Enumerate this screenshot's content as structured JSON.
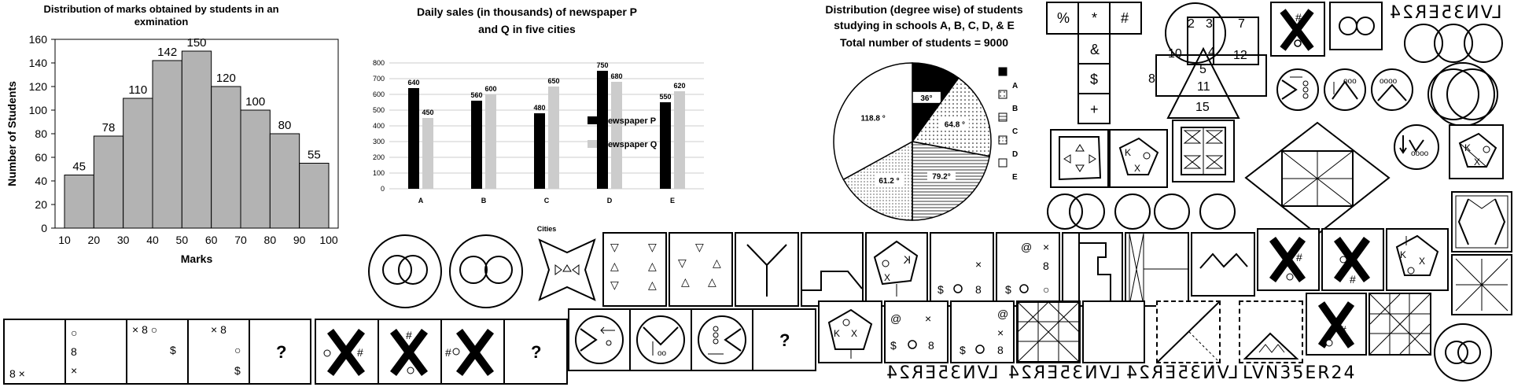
{
  "chart_data": [
    {
      "type": "bar",
      "title": "Distribution of marks obtained by students in an exmination",
      "xlabel": "Marks",
      "ylabel": "Number of Students",
      "x_ticks": [
        "10",
        "20",
        "30",
        "40",
        "50",
        "60",
        "70",
        "80",
        "90",
        "100"
      ],
      "bins": [
        [
          10,
          20
        ],
        [
          20,
          30
        ],
        [
          30,
          40
        ],
        [
          40,
          50
        ],
        [
          50,
          60
        ],
        [
          60,
          70
        ],
        [
          70,
          80
        ],
        [
          80,
          90
        ],
        [
          90,
          100
        ]
      ],
      "values": [
        45,
        78,
        110,
        142,
        150,
        120,
        100,
        80,
        55
      ],
      "ylim": [
        0,
        160
      ],
      "y_ticks": [
        0,
        20,
        40,
        60,
        80,
        100,
        120,
        140,
        160
      ],
      "color": "#b3b3b3"
    },
    {
      "type": "bar",
      "title": "Daily sales (in thousands) of newspaper P and Q in five cities",
      "xlabel": "Cities",
      "categories": [
        "A",
        "B",
        "C",
        "D",
        "E"
      ],
      "series": [
        {
          "name": "Newspaper P",
          "values": [
            640,
            560,
            480,
            750,
            550
          ],
          "color": "#000000"
        },
        {
          "name": "Newspaper Q",
          "values": [
            450,
            600,
            650,
            680,
            620
          ],
          "color": "#cccccc"
        }
      ],
      "ylim": [
        0,
        800
      ],
      "y_ticks": [
        0,
        100,
        200,
        300,
        400,
        500,
        600,
        700,
        800
      ],
      "legend": "right",
      "grid": true
    },
    {
      "type": "pie",
      "title": "Distribution (degree wise) of students studying in schools A, B, C, D, & E",
      "subtitle": "Total number of students = 9000",
      "labels": [
        "A",
        "B",
        "C",
        "D",
        "E"
      ],
      "values": [
        36,
        64.8,
        79.2,
        61.2,
        118.8
      ],
      "value_labels": [
        "36°",
        "64.8 °",
        "79.2°",
        "61.2 °",
        "118.8 °"
      ],
      "legend": "right"
    }
  ],
  "puzzles": {
    "grid_symbols": [
      "%",
      "*",
      "#",
      "&",
      "$",
      "+"
    ],
    "venn_numbers": [
      "2",
      "3",
      "7",
      "10",
      "4",
      "12",
      "8",
      "5",
      "11",
      "15"
    ],
    "mirror_top": "LVN35ER24",
    "question_mark": "?",
    "dots_mirrored_a": "8 ×",
    "dots_b": [
      "○",
      "8",
      "×"
    ],
    "dots_c": [
      "× 8 ○",
      "$"
    ],
    "dots_d": [
      "× 8",
      "○",
      "$"
    ],
    "hash": "#",
    "kx_letters": [
      "K",
      "X",
      "○"
    ],
    "atlas_a": [
      "@",
      "×",
      "8",
      "$",
      "○"
    ],
    "atlas_b": [
      "@",
      "×",
      "$",
      "○",
      "8"
    ],
    "atlas_c": [
      "@",
      "×",
      "$",
      "○",
      "8"
    ],
    "mirror_bottom": [
      "LVN35ER24 (mirror)",
      "LVN35ER24 (flip)",
      "LVN35ER24 (mirror 2)",
      "LVN35ER24"
    ],
    "mirror_bottom_text": "LVN35ER24",
    "oooo": "oooo",
    "ooo": "ooo",
    "oo": "oo",
    "tri_sym": "▽ △"
  }
}
